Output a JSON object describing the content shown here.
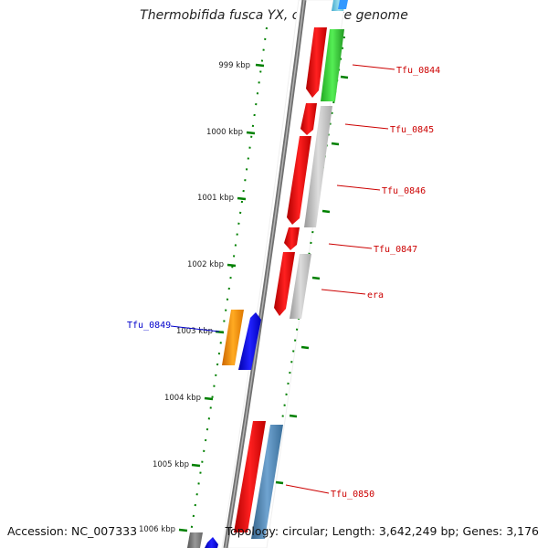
{
  "title": "Thermobifida fusca YX, complete genome",
  "accession": "Accession: NC_007333",
  "topology": "Topology: circular; Length: 3,642,249 bp; Genes: 3,176",
  "colors": {
    "backbone": "#808080",
    "cds_red": "#ff0000",
    "rna_green": "#33cc33",
    "gray": "#bbbbbb",
    "orange": "#ff9900",
    "blue": "#0000ff",
    "steel": "#4682b4",
    "tick": "#008000",
    "label_red": "#cc0000",
    "label_blue": "#0000cc"
  },
  "ticks": [
    "999 kbp",
    "1000 kbp",
    "1001 kbp",
    "1002 kbp",
    "1003 kbp",
    "1004 kbp",
    "1005 kbp",
    "1006 kbp"
  ],
  "gene_labels": [
    {
      "text": "Tfu_0844",
      "color": "#cc0000"
    },
    {
      "text": "Tfu_0845",
      "color": "#cc0000"
    },
    {
      "text": "Tfu_0846",
      "color": "#cc0000"
    },
    {
      "text": "Tfu_0847",
      "color": "#cc0000"
    },
    {
      "text": "era",
      "color": "#cc0000"
    },
    {
      "text": "Tfu_0849",
      "color": "#0000cc"
    },
    {
      "text": "Tfu_0850",
      "color": "#cc0000"
    }
  ]
}
